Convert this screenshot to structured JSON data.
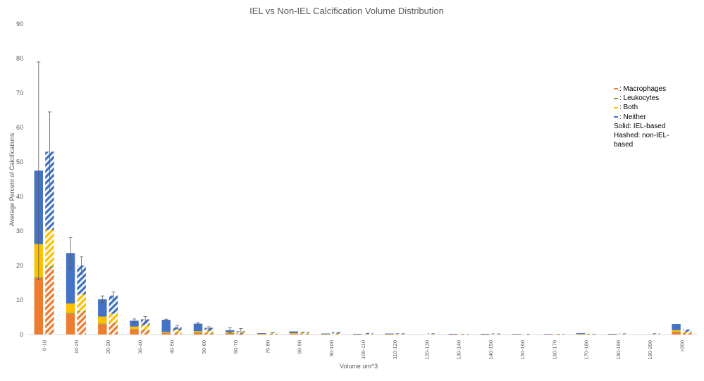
{
  "chart_data": {
    "type": "bar",
    "title": "IEL vs Non-IEL Calcification Volume Distribution",
    "xlabel": "Volume um^3",
    "ylabel": "Average Percent of Calcifications",
    "ylim": [
      0,
      90
    ],
    "yticks": [
      0,
      10,
      20,
      30,
      40,
      50,
      60,
      70,
      80,
      90
    ],
    "grid": false,
    "legend_position": "right",
    "stacked": true,
    "categories": [
      "0-10",
      "10-20",
      "20-30",
      "30-40",
      "40-50",
      "50-60",
      "60-70",
      "70-80",
      "80-90",
      "90-100",
      "100-110",
      "110-120",
      "120-130",
      "130-140",
      "140-150",
      "150-160",
      "160-170",
      "170-180",
      "180-190",
      "190-200",
      ">200"
    ],
    "groups": [
      {
        "name": "IEL-based",
        "pattern": "solid",
        "series": [
          {
            "name": "Macrophages",
            "values": [
              16.5,
              6,
              3,
              1.5,
              0.5,
              0.6,
              0.4,
              0.1,
              0.2,
              0.05,
              0.05,
              0.05,
              0,
              0.05,
              0.05,
              0.05,
              0.05,
              0.1,
              0.05,
              0,
              0.8
            ]
          },
          {
            "name": "Leukocytes",
            "values": [
              0.2,
              0.3,
              0.2,
              0.1,
              0.05,
              0.05,
              0.05,
              0,
              0,
              0,
              0,
              0,
              0,
              0,
              0,
              0,
              0,
              0,
              0,
              0,
              0.05
            ]
          },
          {
            "name": "Both",
            "values": [
              9.5,
              2.7,
              2.0,
              0.7,
              0.2,
              0.3,
              0.3,
              0.1,
              0.2,
              0.05,
              0,
              0.05,
              0,
              0,
              0,
              0,
              0,
              0.05,
              0,
              0,
              0.4
            ]
          },
          {
            "name": "Neither",
            "values": [
              21.3,
              14.6,
              5.0,
              1.7,
              3.5,
              2.2,
              0.5,
              0.2,
              0.5,
              0.2,
              0.15,
              0.2,
              0,
              0.15,
              0.15,
              0.1,
              0.1,
              0.25,
              0.15,
              0,
              1.8
            ]
          }
        ],
        "errors": [
          31.5,
          4.5,
          1.0,
          0.5,
          0.2,
          0.3,
          0.7,
          0,
          0,
          0,
          0,
          0,
          0,
          0,
          0,
          0,
          0,
          0,
          0,
          0,
          0
        ]
      },
      {
        "name": "non-IEL-based",
        "pattern": "hashed",
        "series": [
          {
            "name": "Macrophages",
            "values": [
              19.3,
              6.5,
              3.3,
              1.3,
              0.6,
              0.5,
              0.4,
              0.2,
              0.2,
              0.2,
              0.1,
              0.1,
              0.1,
              0.05,
              0.1,
              0.05,
              0.05,
              0.05,
              0.1,
              0.1,
              0.5
            ]
          },
          {
            "name": "Leukocytes",
            "values": [
              0.5,
              0.3,
              0.2,
              0.1,
              0.05,
              0.05,
              0.05,
              0.05,
              0.05,
              0,
              0,
              0,
              0,
              0,
              0,
              0,
              0,
              0,
              0,
              0,
              0
            ]
          },
          {
            "name": "Both",
            "values": [
              10.5,
              4.8,
              2.5,
              1.3,
              0.6,
              0.5,
              0.3,
              0.2,
              0.25,
              0.1,
              0.1,
              0.1,
              0.1,
              0.05,
              0.05,
              0.05,
              0.05,
              0.05,
              0.05,
              0.05,
              0.3
            ]
          },
          {
            "name": "Neither",
            "values": [
              22.7,
              8.4,
              5.3,
              1.7,
              0.9,
              0.9,
              0.2,
              0.25,
              0.3,
              0.4,
              0.25,
              0.15,
              0.15,
              0.1,
              0.15,
              0.1,
              0.1,
              0.1,
              0.15,
              0.2,
              0.7
            ]
          }
        ],
        "errors": [
          11.5,
          2.5,
          1.0,
          0.8,
          0.5,
          0.3,
          0.8,
          0,
          0,
          0,
          0,
          0,
          0,
          0,
          0,
          0,
          0,
          0,
          0,
          0,
          0
        ]
      }
    ]
  },
  "colors": {
    "Macrophages": "#ed7d31",
    "Leukocytes": "#70ad47",
    "Both": "#ffc000",
    "Neither": "#4472c4",
    "axis": "#d9d9d9",
    "text": "#595959",
    "error_bar": "#595959"
  },
  "legend": {
    "items": [
      {
        "label": ": Macrophages",
        "color": "#ed7d31"
      },
      {
        "label": ": Leukocytes",
        "color": "#70ad47"
      },
      {
        "label": ": Both",
        "color": "#ffc000"
      },
      {
        "label": ": Neither",
        "color": "#4472c4"
      }
    ],
    "solid_note": "Solid: IEL-based",
    "hashed_note": "Hashed: non-IEL-based"
  }
}
